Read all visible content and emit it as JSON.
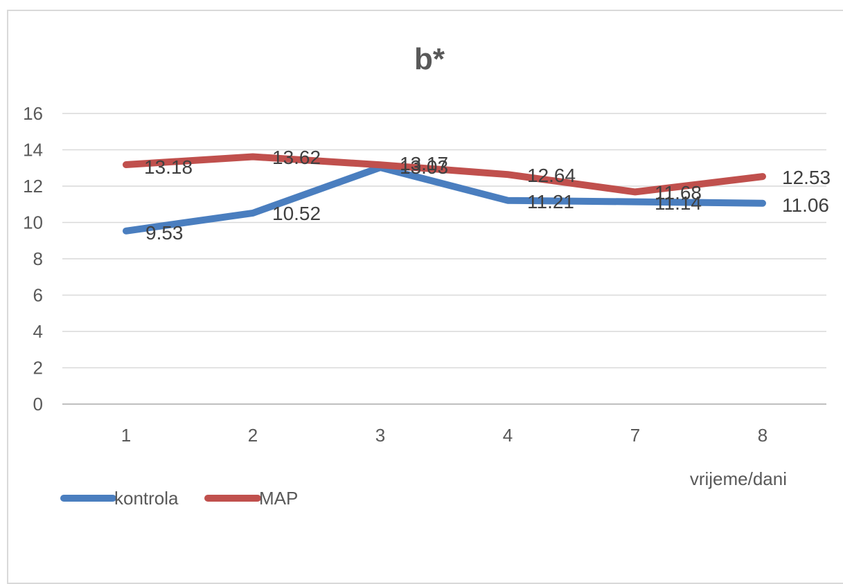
{
  "chart_data": {
    "type": "line",
    "title": "b*",
    "xlabel": "vrijeme/dani",
    "ylabel": "",
    "categories": [
      "1",
      "2",
      "3",
      "4",
      "7",
      "8"
    ],
    "ylim": [
      0,
      16
    ],
    "yticks": [
      0,
      2,
      4,
      6,
      8,
      10,
      12,
      14,
      16
    ],
    "grid": true,
    "legend_position": "bottom-left",
    "series": [
      {
        "name": "kontrola",
        "color": "#4a7ebf",
        "values": [
          9.53,
          10.52,
          13.03,
          11.21,
          11.14,
          11.06
        ],
        "labels": [
          "9.53",
          "10.52",
          "13.03",
          "11.21",
          "11.14",
          "11.06"
        ]
      },
      {
        "name": "MAP",
        "color": "#c0504d",
        "values": [
          13.18,
          13.62,
          13.17,
          12.64,
          11.68,
          12.53
        ],
        "labels": [
          "13.18",
          "13.62",
          "13.17",
          "12.64",
          "11.68",
          "12.53"
        ]
      }
    ]
  }
}
